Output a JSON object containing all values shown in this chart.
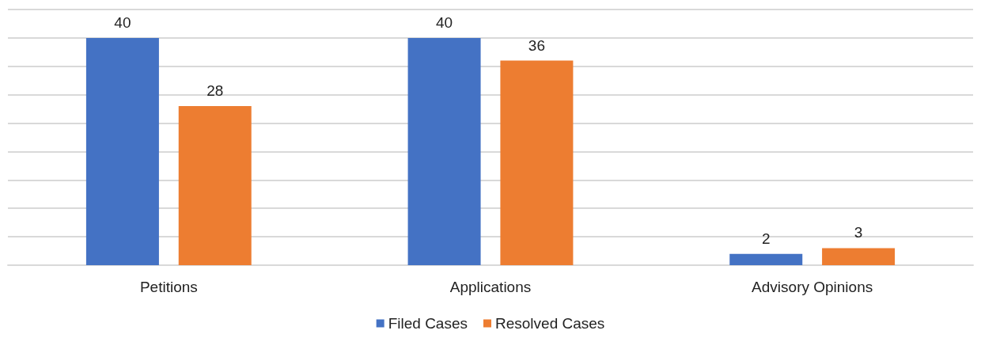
{
  "chart_data": {
    "type": "bar",
    "categories": [
      "Petitions",
      "Applications",
      "Advisory Opinions"
    ],
    "series": [
      {
        "name": "Filed Cases",
        "color": "#4472c4",
        "values": [
          40,
          40,
          2
        ]
      },
      {
        "name": "Resolved Cases",
        "color": "#ed7d31",
        "values": [
          28,
          36,
          3
        ]
      }
    ],
    "ylim": [
      0,
      45
    ],
    "yticks": [
      {
        "value": 0,
        "label": null
      },
      {
        "value": 5,
        "label": null
      },
      {
        "value": 10,
        "label": null
      },
      {
        "value": 15,
        "label": null
      },
      {
        "value": 20,
        "label": null
      },
      {
        "value": 25,
        "label": null
      },
      {
        "value": 30,
        "label": null
      },
      {
        "value": 35,
        "label": null
      },
      {
        "value": 40,
        "label": null
      },
      {
        "value": 45,
        "label": null
      }
    ],
    "tick_labels": "x",
    "grid": "y",
    "legend": "bottom",
    "data_labels": true
  }
}
